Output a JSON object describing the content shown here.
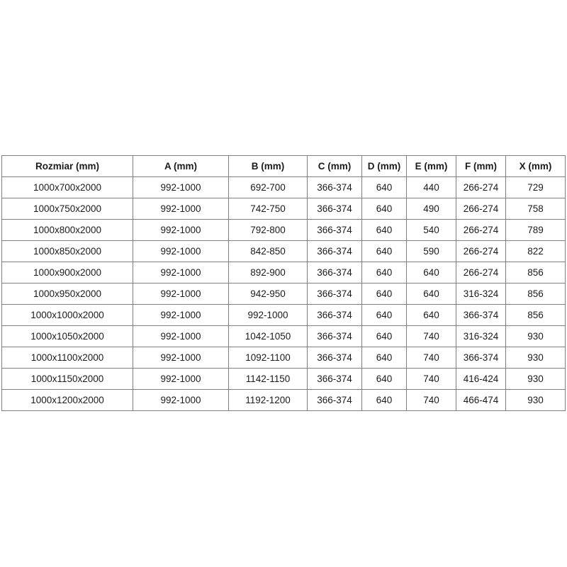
{
  "colors": {
    "background": "#ffffff",
    "table_border": "#7f7f7f",
    "text": "#1b1b1b"
  },
  "table": {
    "columns": [
      "Rozmiar (mm)",
      "A (mm)",
      "B (mm)",
      "C (mm)",
      "D (mm)",
      "E (mm)",
      "F (mm)",
      "X (mm)"
    ],
    "rows": [
      [
        "1000x700x2000",
        "992-1000",
        "692-700",
        "366-374",
        "640",
        "440",
        "266-274",
        "729"
      ],
      [
        "1000x750x2000",
        "992-1000",
        "742-750",
        "366-374",
        "640",
        "490",
        "266-274",
        "758"
      ],
      [
        "1000x800x2000",
        "992-1000",
        "792-800",
        "366-374",
        "640",
        "540",
        "266-274",
        "789"
      ],
      [
        "1000x850x2000",
        "992-1000",
        "842-850",
        "366-374",
        "640",
        "590",
        "266-274",
        "822"
      ],
      [
        "1000x900x2000",
        "992-1000",
        "892-900",
        "366-374",
        "640",
        "640",
        "266-274",
        "856"
      ],
      [
        "1000x950x2000",
        "992-1000",
        "942-950",
        "366-374",
        "640",
        "640",
        "316-324",
        "856"
      ],
      [
        "1000x1000x2000",
        "992-1000",
        "992-1000",
        "366-374",
        "640",
        "640",
        "366-374",
        "856"
      ],
      [
        "1000x1050x2000",
        "992-1000",
        "1042-1050",
        "366-374",
        "640",
        "740",
        "316-324",
        "930"
      ],
      [
        "1000x1100x2000",
        "992-1000",
        "1092-1100",
        "366-374",
        "640",
        "740",
        "366-374",
        "930"
      ],
      [
        "1000x1150x2000",
        "992-1000",
        "1142-1150",
        "366-374",
        "640",
        "740",
        "416-424",
        "930"
      ],
      [
        "1000x1200x2000",
        "992-1000",
        "1192-1200",
        "366-374",
        "640",
        "740",
        "466-474",
        "930"
      ]
    ]
  }
}
